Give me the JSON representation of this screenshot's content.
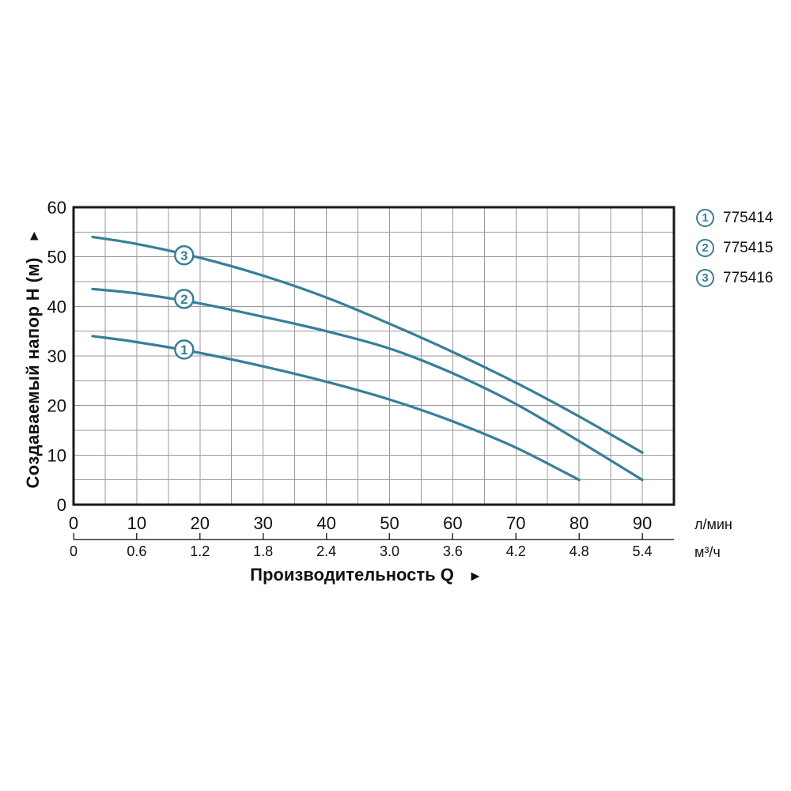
{
  "figure": {
    "y_axis": {
      "title": "Создаваемый напор H (м)",
      "arrow_icon": "▲"
    },
    "x_axis": {
      "title": "Производительность Q",
      "arrow_icon": "►",
      "unit_primary": "л/мин",
      "unit_secondary": "м³/ч"
    }
  },
  "legend": {
    "items": [
      {
        "marker": "1",
        "code": "775414"
      },
      {
        "marker": "2",
        "code": "775415"
      },
      {
        "marker": "3",
        "code": "775416"
      }
    ]
  },
  "chart_data": {
    "type": "line",
    "title": "",
    "xlabel": "Производительность Q (л/мин; м³/ч)",
    "ylabel": "Создаваемый напор H (м)",
    "xlim": [
      0,
      95
    ],
    "ylim": [
      0,
      60
    ],
    "grid": "on",
    "grid_step": 5,
    "legend_position": "top-right",
    "x_ticks_lmin": [
      0,
      10,
      20,
      30,
      40,
      50,
      60,
      70,
      80,
      90
    ],
    "x_ticks_m3h": [
      "0",
      "0.6",
      "1.2",
      "1.8",
      "2.4",
      "3.0",
      "3.6",
      "4.2",
      "4.8",
      "5.4"
    ],
    "m3h_per_lmin": 0.06,
    "y_ticks": [
      0,
      10,
      20,
      30,
      40,
      50,
      60
    ],
    "series": [
      {
        "name": "775414",
        "marker": "1",
        "marker_at": [
          17.5,
          31.3
        ],
        "points": [
          [
            3,
            34
          ],
          [
            10,
            32.8
          ],
          [
            20,
            30.6
          ],
          [
            30,
            27.9
          ],
          [
            40,
            24.8
          ],
          [
            50,
            21.2
          ],
          [
            60,
            16.8
          ],
          [
            70,
            11.5
          ],
          [
            80,
            5
          ]
        ]
      },
      {
        "name": "775415",
        "marker": "2",
        "marker_at": [
          17.5,
          41.5
        ],
        "points": [
          [
            3,
            43.5
          ],
          [
            10,
            42.6
          ],
          [
            20,
            40.6
          ],
          [
            30,
            37.9
          ],
          [
            40,
            35
          ],
          [
            50,
            31.5
          ],
          [
            60,
            26.5
          ],
          [
            70,
            20.3
          ],
          [
            80,
            12.8
          ],
          [
            90,
            5
          ]
        ]
      },
      {
        "name": "775416",
        "marker": "3",
        "marker_at": [
          17.5,
          50.3
        ],
        "points": [
          [
            3,
            54
          ],
          [
            10,
            52.6
          ],
          [
            20,
            49.8
          ],
          [
            30,
            46.2
          ],
          [
            40,
            41.8
          ],
          [
            50,
            36.5
          ],
          [
            60,
            30.8
          ],
          [
            70,
            24.6
          ],
          [
            80,
            17.8
          ],
          [
            90,
            10.5
          ]
        ]
      }
    ],
    "colors": {
      "curve": "#377F98",
      "grid": "#999999",
      "axis": "#1A1A1A",
      "text": "#111111"
    }
  }
}
